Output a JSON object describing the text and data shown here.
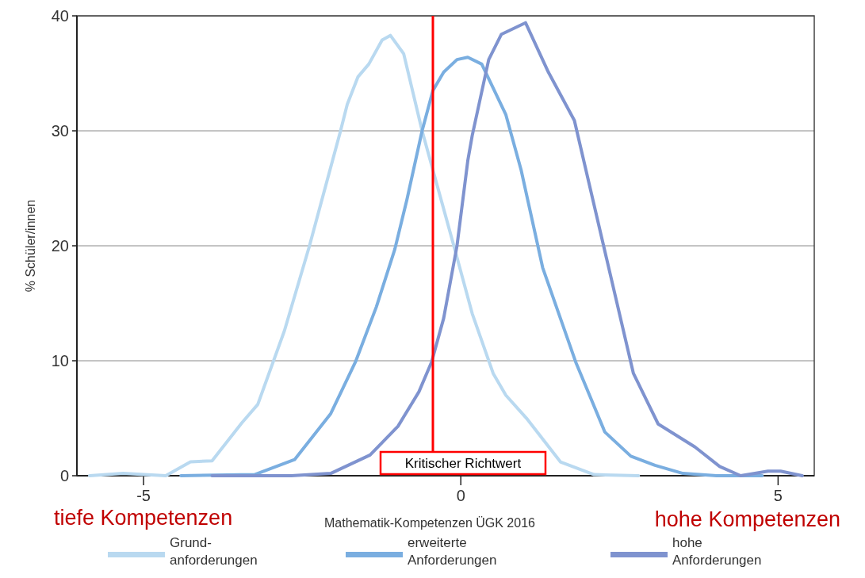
{
  "chart_data": {
    "type": "line",
    "xlabel": "Mathematik-Kompetenzen ÜGK 2016",
    "ylabel": "% Schüler/innen",
    "xlim": [
      -6.05,
      5.57
    ],
    "xticks": [
      -5,
      0,
      5
    ],
    "ylim": [
      0,
      40
    ],
    "yticks": [
      0,
      10,
      20,
      30,
      40
    ],
    "grid": "y",
    "legend": "bottom",
    "series": [
      {
        "name": "Grund-\nanforderungen",
        "color": "#b9d9f0",
        "x": [
          -5.85,
          -5.32,
          -4.65,
          -4.26,
          -3.92,
          -3.45,
          -3.2,
          -2.78,
          -2.39,
          -1.9,
          -1.79,
          -1.62,
          -1.45,
          -1.24,
          -1.11,
          -0.9,
          -0.61,
          -0.11,
          0.18,
          0.51,
          0.71,
          1.05,
          1.57,
          2.1,
          2.8
        ],
        "values": [
          0,
          0.2,
          0,
          1.2,
          1.3,
          4.6,
          6.2,
          12.6,
          19.9,
          29.9,
          32.3,
          34.7,
          35.8,
          37.9,
          38.3,
          36.7,
          30,
          20,
          14.1,
          8.9,
          7,
          4.9,
          1.2,
          0.1,
          0
        ]
      },
      {
        "name": "erweiterte\nAnforderungen",
        "color": "#7aaee0",
        "x": [
          -4.41,
          -3.25,
          -2.62,
          -2.05,
          -1.66,
          -1.33,
          -1.04,
          -0.85,
          -0.61,
          -0.44,
          -0.27,
          -0.06,
          0.11,
          0.33,
          0.71,
          0.95,
          1.29,
          1.81,
          2.27,
          2.68,
          3.06,
          3.5,
          4.03,
          4.75
        ],
        "values": [
          0,
          0.1,
          1.4,
          5.4,
          9.9,
          14.7,
          19.7,
          24,
          30,
          33.5,
          35.1,
          36.2,
          36.4,
          35.8,
          31.4,
          26.6,
          18.1,
          9.9,
          3.8,
          1.7,
          0.9,
          0.2,
          0,
          0
        ]
      },
      {
        "name": "hohe\nAnforderungen",
        "color": "#7f93cf",
        "x": [
          -3.92,
          -2.67,
          -2.05,
          -1.43,
          -0.99,
          -0.66,
          -0.46,
          -0.27,
          -0.06,
          0.11,
          0.18,
          0.44,
          0.64,
          1.02,
          1.38,
          1.79,
          2.25,
          2.72,
          3.11,
          3.69,
          4.08,
          4.41,
          4.84,
          5.04,
          5.38
        ],
        "values": [
          0,
          0,
          0.2,
          1.8,
          4.3,
          7.3,
          9.9,
          13.7,
          20,
          27.4,
          29.6,
          36.2,
          38.4,
          39.4,
          35.1,
          30.9,
          20,
          8.9,
          4.5,
          2.5,
          0.8,
          0,
          0.4,
          0.4,
          0
        ]
      }
    ],
    "ref_lines": [
      {
        "axis": "x",
        "value": -0.44,
        "label": "Kritischer Richtwert",
        "color": "#ff0000"
      }
    ],
    "annotations": [
      "tiefe Kompetenzen",
      "hohe Kompetenzen"
    ]
  }
}
